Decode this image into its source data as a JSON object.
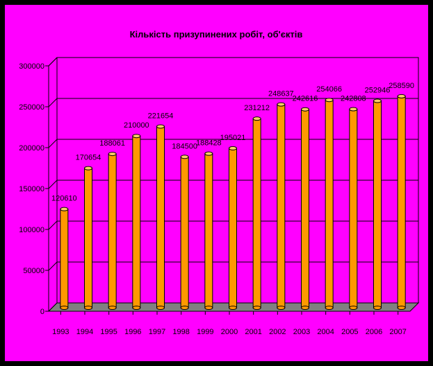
{
  "chart_data": {
    "type": "bar",
    "title": "Кількість призупинених робіт, об'єктів",
    "xlabel": "",
    "ylabel": "",
    "categories": [
      "1993",
      "1994",
      "1995",
      "1996",
      "1997",
      "1998",
      "1999",
      "2000",
      "2001",
      "2002",
      "2003",
      "2004",
      "2005",
      "2006",
      "2007"
    ],
    "values": [
      120610,
      170654,
      188061,
      210000,
      221654,
      184500,
      188428,
      195021,
      231212,
      248637,
      242616,
      254066,
      242808,
      252946,
      258590
    ],
    "value_labels": [
      "120610",
      "170654",
      "188061",
      "210000",
      "221654",
      "184500",
      "188428",
      "195021",
      "231212",
      "248637",
      "242616",
      "254066",
      "242808",
      "252946",
      "258590"
    ],
    "ylim": [
      0,
      300000
    ],
    "yticks": [
      0,
      50000,
      100000,
      150000,
      200000,
      250000,
      300000
    ],
    "ytick_labels": [
      "0",
      "50000",
      "100000",
      "150000",
      "200000",
      "250000",
      "300000"
    ],
    "grid": true,
    "legend": "none",
    "colors": {
      "background": "#ff00ff",
      "border": "#000000",
      "bar_front": "#ff9900",
      "bar_top": "#ffcc66",
      "bar_outline": "#000000",
      "floor": "#808080",
      "grid": "#000000"
    }
  }
}
